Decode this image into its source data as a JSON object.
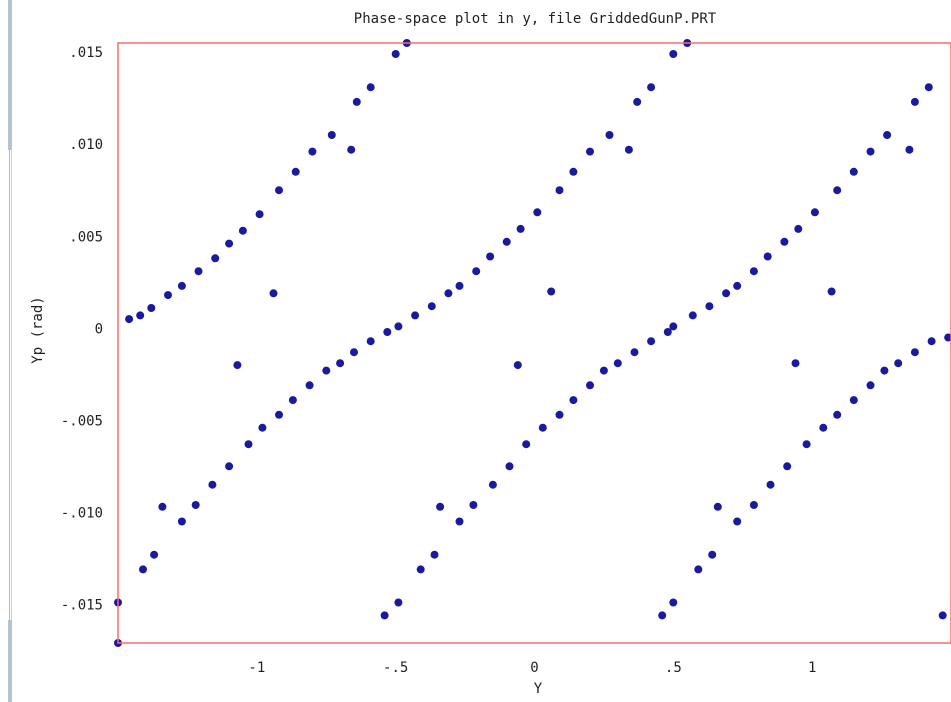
{
  "window": {
    "title": "Phase-space plot in y, file GriddedGunP.PRT"
  },
  "colors": {
    "frame": "#ff6b6b",
    "points": "#1a1aa0",
    "text": "#222222"
  },
  "chart_data": {
    "type": "scatter",
    "title": "Phase-space plot in y, file GriddedGunP.PRT",
    "xlabel": "Y",
    "ylabel": "Yp (rad)",
    "xlim": [
      -1.5,
      1.5
    ],
    "ylim": [
      -0.0171,
      0.0155
    ],
    "xticks": [
      -1,
      -0.5,
      0,
      0.5,
      1
    ],
    "xtick_labels": [
      "-1",
      "-.5",
      "0",
      ".5",
      "1"
    ],
    "yticks": [
      0.015,
      0.01,
      0.005,
      0,
      -0.005,
      -0.01,
      -0.015
    ],
    "ytick_labels": [
      ".015",
      ".010",
      ".005",
      "0",
      "-.005",
      "-.010",
      "-.015"
    ],
    "grid": false,
    "series": [
      {
        "points": [
          [
            -1.5,
            -0.0171
          ],
          [
            -1.5,
            -0.0149
          ],
          [
            -1.41,
            -0.0131
          ],
          [
            -1.37,
            -0.0123
          ],
          [
            -1.34,
            -0.0097
          ],
          [
            -1.27,
            -0.0105
          ],
          [
            -1.22,
            -0.0096
          ],
          [
            -1.16,
            -0.0085
          ],
          [
            -1.1,
            -0.0075
          ],
          [
            -1.03,
            -0.0063
          ],
          [
            -0.98,
            -0.0054
          ],
          [
            -0.92,
            -0.0047
          ],
          [
            -0.87,
            -0.0039
          ],
          [
            -0.81,
            -0.0031
          ],
          [
            -0.75,
            -0.0023
          ],
          [
            -0.7,
            -0.0019
          ],
          [
            -0.65,
            -0.0013
          ],
          [
            -0.59,
            -0.0007
          ],
          [
            -0.53,
            -0.0002
          ],
          [
            -0.49,
            0.0001
          ],
          [
            -0.43,
            0.0007
          ],
          [
            -0.37,
            0.0012
          ],
          [
            -0.31,
            0.0019
          ],
          [
            -0.27,
            0.0023
          ],
          [
            -0.21,
            0.0031
          ],
          [
            -0.16,
            0.0039
          ],
          [
            -0.1,
            0.0047
          ],
          [
            -0.05,
            0.0054
          ],
          [
            0.01,
            0.0063
          ],
          [
            0.09,
            0.0075
          ],
          [
            0.14,
            0.0085
          ],
          [
            0.2,
            0.0096
          ],
          [
            0.27,
            0.0105
          ],
          [
            0.34,
            0.0097
          ],
          [
            0.37,
            0.0123
          ],
          [
            0.42,
            0.0131
          ],
          [
            0.5,
            0.0149
          ],
          [
            0.55,
            0.0155
          ],
          [
            -0.54,
            -0.0156
          ],
          [
            -0.49,
            -0.0149
          ],
          [
            -0.41,
            -0.0131
          ],
          [
            -0.36,
            -0.0123
          ],
          [
            -0.34,
            -0.0097
          ],
          [
            -0.27,
            -0.0105
          ],
          [
            -0.22,
            -0.0096
          ],
          [
            -0.15,
            -0.0085
          ],
          [
            -0.09,
            -0.0075
          ],
          [
            -0.03,
            -0.0063
          ],
          [
            0.03,
            -0.0054
          ],
          [
            0.09,
            -0.0047
          ],
          [
            0.14,
            -0.0039
          ],
          [
            0.2,
            -0.0031
          ],
          [
            0.25,
            -0.0023
          ],
          [
            0.3,
            -0.0019
          ],
          [
            0.36,
            -0.0013
          ],
          [
            0.42,
            -0.0007
          ],
          [
            0.48,
            -0.0002
          ],
          [
            0.5,
            0.0001
          ],
          [
            0.57,
            0.0007
          ],
          [
            0.63,
            0.0012
          ],
          [
            0.69,
            0.0019
          ],
          [
            0.73,
            0.0023
          ],
          [
            0.79,
            0.0031
          ],
          [
            0.84,
            0.0039
          ],
          [
            0.9,
            0.0047
          ],
          [
            0.95,
            0.0054
          ],
          [
            1.01,
            0.0063
          ],
          [
            1.09,
            0.0075
          ],
          [
            1.15,
            0.0085
          ],
          [
            1.21,
            0.0096
          ],
          [
            1.27,
            0.0105
          ],
          [
            1.35,
            0.0097
          ],
          [
            1.37,
            0.0123
          ],
          [
            1.42,
            0.0131
          ],
          [
            0.46,
            -0.0156
          ],
          [
            0.5,
            -0.0149
          ],
          [
            0.59,
            -0.0131
          ],
          [
            0.64,
            -0.0123
          ],
          [
            0.66,
            -0.0097
          ],
          [
            0.73,
            -0.0105
          ],
          [
            0.79,
            -0.0096
          ],
          [
            0.85,
            -0.0085
          ],
          [
            0.91,
            -0.0075
          ],
          [
            0.98,
            -0.0063
          ],
          [
            1.04,
            -0.0054
          ],
          [
            1.09,
            -0.0047
          ],
          [
            1.15,
            -0.0039
          ],
          [
            1.21,
            -0.0031
          ],
          [
            1.26,
            -0.0023
          ],
          [
            1.31,
            -0.0019
          ],
          [
            1.37,
            -0.0013
          ],
          [
            1.43,
            -0.0007
          ],
          [
            1.49,
            -0.0005
          ],
          [
            1.47,
            -0.0156
          ],
          [
            -1.46,
            0.0005
          ],
          [
            -1.42,
            0.0007
          ],
          [
            -1.38,
            0.0011
          ],
          [
            -1.32,
            0.0018
          ],
          [
            -1.27,
            0.0023
          ],
          [
            -1.21,
            0.0031
          ],
          [
            -1.15,
            0.0038
          ],
          [
            -1.1,
            0.0046
          ],
          [
            -1.05,
            0.0053
          ],
          [
            -0.99,
            0.0062
          ],
          [
            -0.92,
            0.0075
          ],
          [
            -0.86,
            0.0085
          ],
          [
            -0.8,
            0.0096
          ],
          [
            -0.73,
            0.0105
          ],
          [
            -0.66,
            0.0097
          ],
          [
            -0.64,
            0.0123
          ],
          [
            -0.59,
            0.0131
          ],
          [
            -0.5,
            0.0149
          ],
          [
            -0.46,
            0.0155
          ],
          [
            -1.07,
            -0.002
          ],
          [
            -0.94,
            0.0019
          ],
          [
            -0.06,
            -0.002
          ],
          [
            0.06,
            0.002
          ],
          [
            0.94,
            -0.0019
          ],
          [
            1.07,
            0.002
          ]
        ]
      }
    ]
  }
}
